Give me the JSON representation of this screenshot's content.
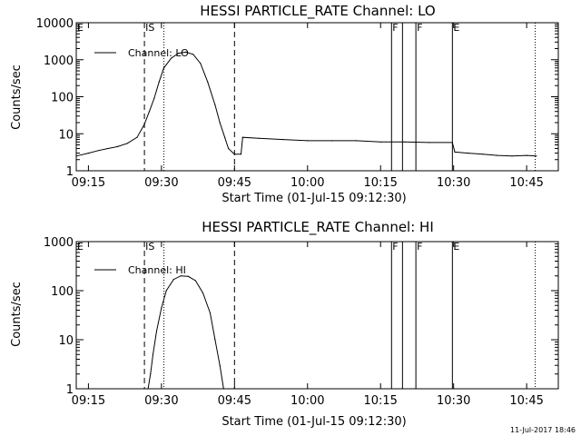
{
  "footer": {
    "timestamp": "11-Jul-2017 18:46"
  },
  "chart_data": [
    {
      "type": "line",
      "title": "HESSI PARTICLE_RATE Channel: LO",
      "xlabel": "Start Time (01-Jul-15 09:12:30)",
      "ylabel": "Counts/sec",
      "yscale": "log",
      "ylim": [
        1,
        10000
      ],
      "xlim": [
        "09:12:30",
        "10:51:30"
      ],
      "x_ticks": [
        "09:15",
        "09:30",
        "09:45",
        "10:00",
        "10:15",
        "10:30",
        "10:45"
      ],
      "y_ticks": [
        "1",
        "10",
        "100",
        "1000",
        "10000"
      ],
      "legend": {
        "position": "top-left",
        "label": "Channel: LO"
      },
      "markers": [
        {
          "label": "E",
          "time": "09:12:30",
          "style": "none"
        },
        {
          "label": "IS",
          "time": "09:26:30",
          "style": "dashed"
        },
        {
          "label": "",
          "time": "09:30:30",
          "style": "dotted"
        },
        {
          "label": "",
          "time": "09:45:00",
          "style": "dashed"
        },
        {
          "label": "F",
          "time": "10:17:15",
          "style": "solid"
        },
        {
          "label": "",
          "time": "10:19:30",
          "style": "solid"
        },
        {
          "label": "F",
          "time": "10:22:15",
          "style": "solid"
        },
        {
          "label": "E",
          "time": "10:29:45",
          "style": "solid"
        },
        {
          "label": "",
          "time": "10:46:45",
          "style": "dotted"
        }
      ],
      "series": [
        {
          "name": "Channel: LO",
          "x": [
            "09:12:30",
            "09:15:00",
            "09:17:00",
            "09:19:00",
            "09:21:00",
            "09:23:00",
            "09:25:00",
            "09:26:30",
            "09:27:30",
            "09:28:30",
            "09:29:30",
            "09:30:30",
            "09:32:00",
            "09:33:30",
            "09:35:00",
            "09:36:30",
            "09:38:00",
            "09:39:30",
            "09:41:00",
            "09:42:00",
            "09:43:00",
            "09:43:45",
            "09:45:00",
            "09:46:20",
            "09:46:40",
            "09:50:00",
            "09:55:00",
            "10:00:00",
            "10:05:00",
            "10:10:00",
            "10:15:00",
            "10:20:00",
            "10:25:00",
            "10:29:45",
            "10:30:15",
            "10:33:00",
            "10:36:00",
            "10:39:00",
            "10:42:00",
            "10:45:00",
            "10:47:00"
          ],
          "y": [
            2.5,
            3,
            3.5,
            4,
            4.5,
            5.5,
            8,
            18,
            40,
            90,
            250,
            600,
            1100,
            1500,
            1600,
            1400,
            800,
            250,
            60,
            20,
            8,
            4,
            2.8,
            2.8,
            8,
            7.5,
            7,
            6.5,
            6.5,
            6.5,
            6,
            6,
            5.8,
            5.8,
            3.2,
            3,
            2.8,
            2.6,
            2.5,
            2.6,
            2.5
          ]
        }
      ]
    },
    {
      "type": "line",
      "title": "HESSI PARTICLE_RATE Channel: HI",
      "xlabel": "Start Time (01-Jul-15 09:12:30)",
      "ylabel": "Counts/sec",
      "yscale": "log",
      "ylim": [
        1,
        1000
      ],
      "xlim": [
        "09:12:30",
        "10:51:30"
      ],
      "x_ticks": [
        "09:15",
        "09:30",
        "09:45",
        "10:00",
        "10:15",
        "10:30",
        "10:45"
      ],
      "y_ticks": [
        "1",
        "10",
        "100",
        "1000"
      ],
      "legend": {
        "position": "top-left",
        "label": "Channel: HI"
      },
      "markers": [
        {
          "label": "E",
          "time": "09:12:30",
          "style": "none"
        },
        {
          "label": "IS",
          "time": "09:26:30",
          "style": "dashed"
        },
        {
          "label": "",
          "time": "09:30:30",
          "style": "dotted"
        },
        {
          "label": "",
          "time": "09:45:00",
          "style": "dashed"
        },
        {
          "label": "F",
          "time": "10:17:15",
          "style": "solid"
        },
        {
          "label": "",
          "time": "10:19:30",
          "style": "solid"
        },
        {
          "label": "F",
          "time": "10:22:15",
          "style": "solid"
        },
        {
          "label": "E",
          "time": "10:29:45",
          "style": "solid"
        },
        {
          "label": "",
          "time": "10:46:45",
          "style": "dotted"
        }
      ],
      "series": [
        {
          "name": "Channel: HI",
          "x": [
            "09:27:15",
            "09:27:45",
            "09:28:15",
            "09:29:00",
            "09:30:00",
            "09:31:00",
            "09:32:30",
            "09:34:00",
            "09:35:30",
            "09:37:00",
            "09:38:30",
            "09:40:00",
            "09:41:00",
            "09:42:00",
            "09:42:45"
          ],
          "y": [
            1,
            2,
            5,
            15,
            45,
            100,
            170,
            200,
            195,
            160,
            90,
            35,
            10,
            3,
            1
          ]
        }
      ]
    }
  ]
}
